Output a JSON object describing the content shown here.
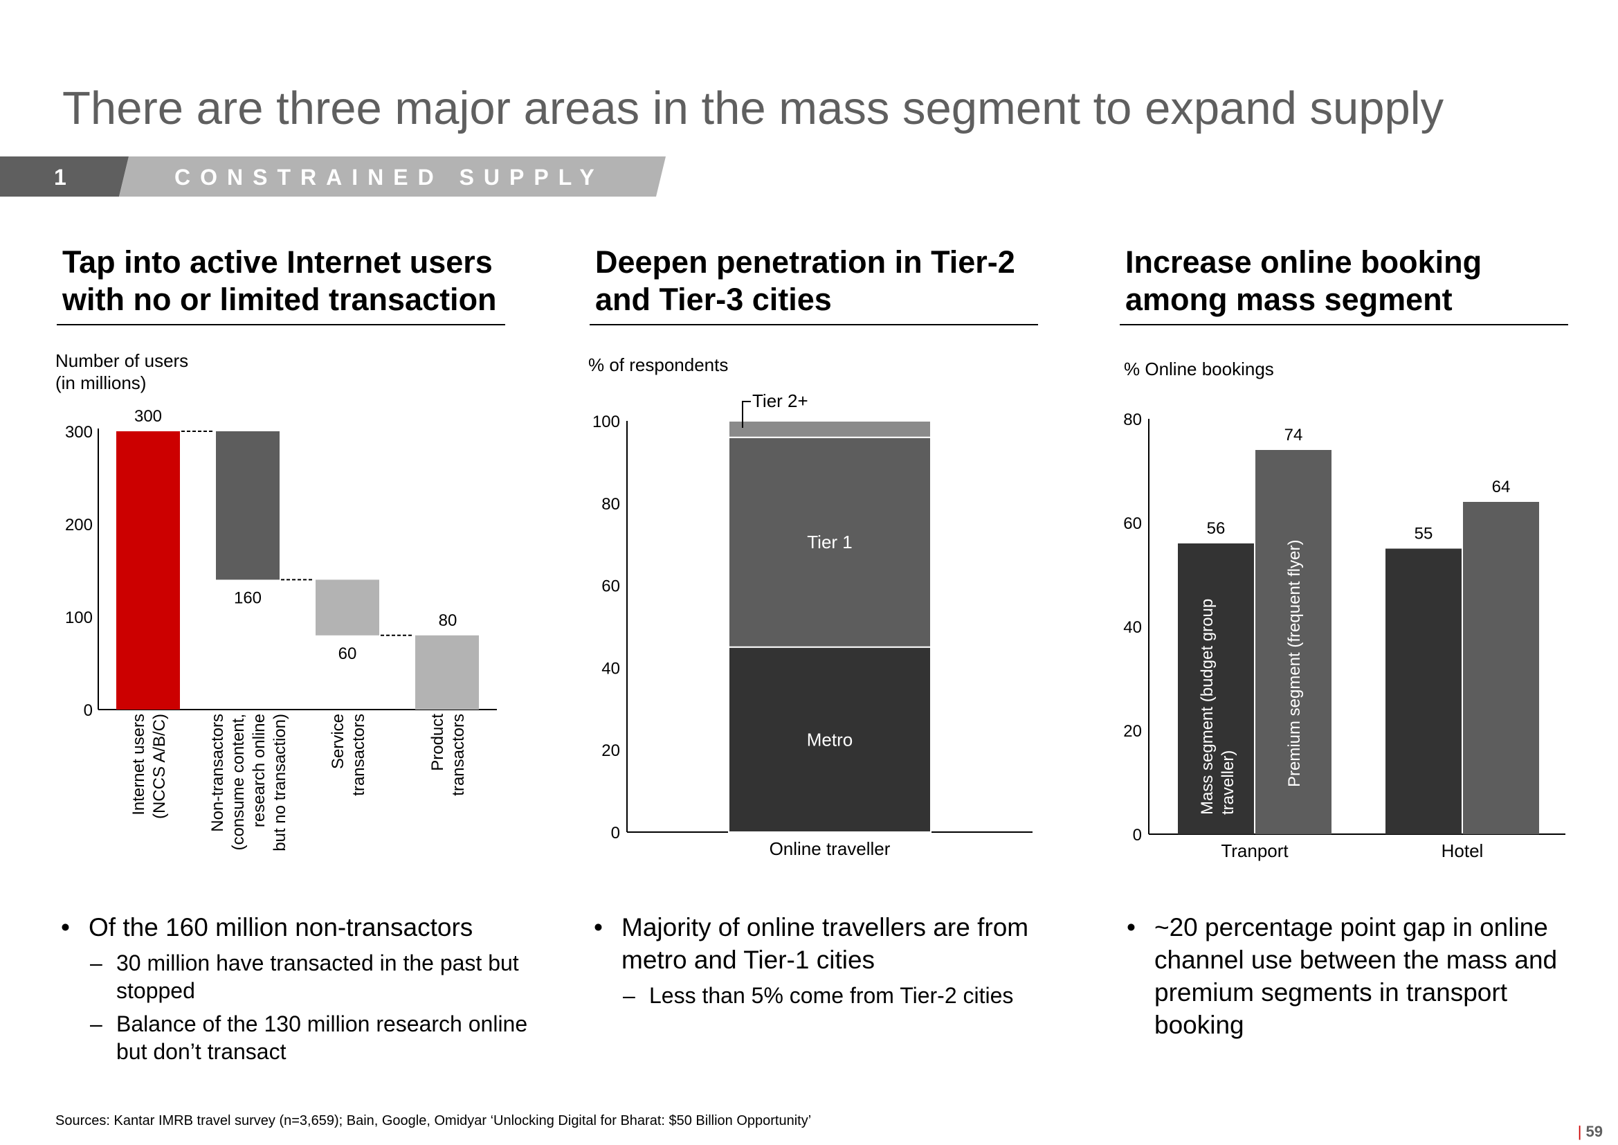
{
  "title": "There are three major areas in the mass segment to expand supply",
  "banner": {
    "number": "1",
    "text": "CONSTRAINED SUPPLY"
  },
  "columns": [
    {
      "heading_line1": "Tap into active Internet users",
      "heading_line2": "with no or limited transaction",
      "unit_line1": "Number of users",
      "unit_line2": "(in millions)",
      "bullet": "Of the 160 million non-transactors",
      "subbullets": [
        "30 million have transacted in the past but stopped",
        "Balance of the 130 million research online but don’t transact"
      ]
    },
    {
      "heading_line1": "Deepen penetration in Tier-2",
      "heading_line2": "and Tier-3 cities",
      "unit_line1": "% of respondents",
      "bullet": "Majority of online travellers are from metro and Tier-1 cities",
      "subbullets": [
        "Less than 5% come from Tier-2 cities"
      ]
    },
    {
      "heading_line1": "Increase online booking",
      "heading_line2": "among mass segment",
      "unit_line1": "% Online bookings",
      "bullet": "~20 percentage point gap in online channel use between the mass and premium segments in transport booking",
      "subbullets": []
    }
  ],
  "colors": {
    "red": "#cc0000",
    "dark": "#333333",
    "mid": "#5d5d5d",
    "light": "#b3b3b3",
    "tier2": "#8a8a8a",
    "title_gray": "#5f5f5f"
  },
  "chart_data": [
    {
      "type": "bar",
      "subtype": "waterfall",
      "ylim": [
        0,
        300
      ],
      "yticks": [
        0,
        100,
        200,
        300
      ],
      "categories": [
        [
          "Internet users",
          "(NCCS A/B/C)"
        ],
        [
          "Non-transactors",
          "(consume content,",
          "research online",
          "but no transaction)"
        ],
        [
          "Service",
          "transactors"
        ],
        [
          "Product",
          "transactors"
        ]
      ],
      "bars": [
        {
          "start": 0,
          "end": 300,
          "label": "300",
          "color": "red"
        },
        {
          "start": 140,
          "end": 300,
          "label": "160",
          "color": "mid"
        },
        {
          "start": 80,
          "end": 140,
          "label": "60",
          "color": "light"
        },
        {
          "start": 0,
          "end": 80,
          "label": "80",
          "color": "light"
        }
      ]
    },
    {
      "type": "bar",
      "subtype": "stacked",
      "ylim": [
        0,
        100
      ],
      "yticks": [
        0,
        20,
        40,
        60,
        80,
        100
      ],
      "categories": [
        "Online traveller"
      ],
      "series": [
        {
          "name": "Metro",
          "values": [
            45
          ],
          "color": "dark"
        },
        {
          "name": "Tier 1",
          "values": [
            51
          ],
          "color": "mid"
        },
        {
          "name": "Tier 2+",
          "values": [
            4
          ],
          "color": "tier2"
        }
      ]
    },
    {
      "type": "bar",
      "subtype": "grouped",
      "ylim": [
        0,
        80
      ],
      "yticks": [
        0,
        20,
        40,
        60,
        80
      ],
      "categories": [
        "Tranport",
        "Hotel"
      ],
      "series": [
        {
          "name": "Mass segment (budget group traveller)",
          "values": [
            56,
            55
          ],
          "color": "dark"
        },
        {
          "name": "Premium segment (frequent flyer)",
          "values": [
            74,
            64
          ],
          "color": "mid"
        }
      ]
    }
  ],
  "source": "Sources: Kantar IMRB travel survey (n=3,659); Bain, Google, Omidyar ‘Unlocking Digital for Bharat: $50 Billion Opportunity’",
  "page_number": "59"
}
